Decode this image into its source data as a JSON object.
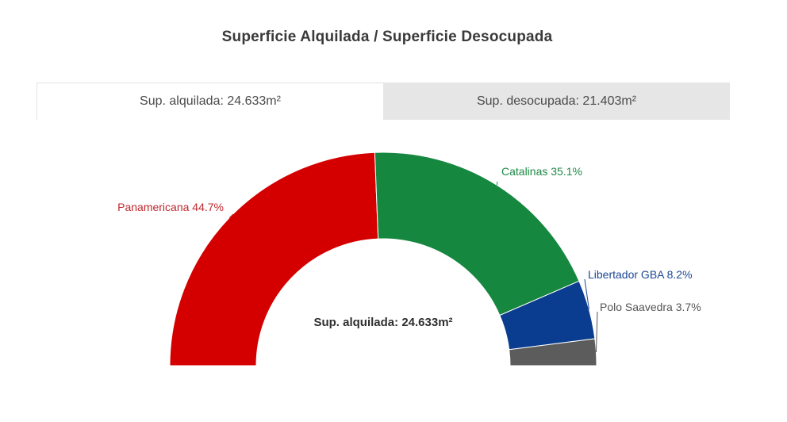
{
  "title": "Superficie Alquilada / Superficie Desocupada",
  "tabs": [
    {
      "label": "Sup. alquilada: 24.633m²",
      "active": true
    },
    {
      "label": "Sup. desocupada: 21.403m²",
      "active": false
    }
  ],
  "chart_data": {
    "type": "pie",
    "style": "semi-donut",
    "center_label": "Sup. alquilada: 24.633m²",
    "slices": [
      {
        "name": "Panamericana",
        "value": 44.7,
        "label": "Panamericana 44.7%",
        "color": "#d40000"
      },
      {
        "name": "Catalinas",
        "value": 35.1,
        "label": "Catalinas 35.1%",
        "color": "#16873f"
      },
      {
        "name": "Libertador GBA",
        "value": 8.2,
        "label": "Libertador GBA 8.2%",
        "color": "#0a3d8f"
      },
      {
        "name": "Polo Saavedra",
        "value": 3.7,
        "label": "Polo Saavedra 3.7%",
        "color": "#5c5c5c"
      }
    ],
    "label_colors": {
      "Panamericana": "#c0282e",
      "Catalinas": "#1d8a45",
      "Libertador GBA": "#1c4796",
      "Polo Saavedra": "#555555"
    }
  }
}
